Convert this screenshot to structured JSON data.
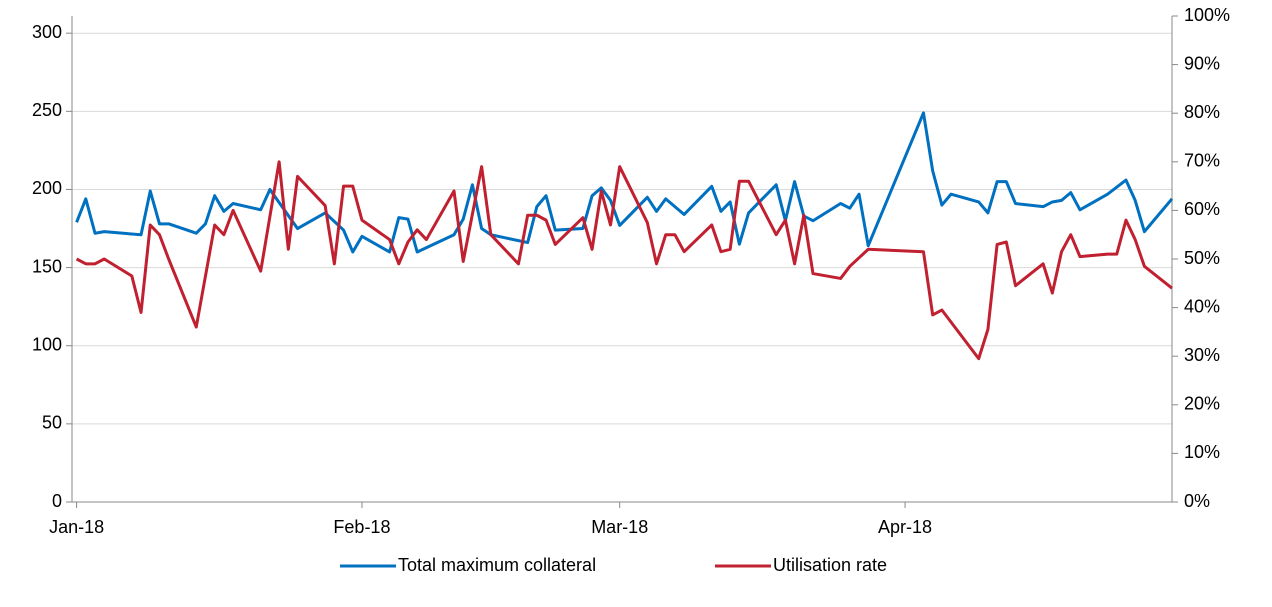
{
  "chart_data": {
    "type": "line",
    "xlim": [
      -0.5,
      119
    ],
    "xticks": [
      {
        "value": 0,
        "label": "Jan-18"
      },
      {
        "value": 31,
        "label": "Feb-18"
      },
      {
        "value": 59,
        "label": "Mar-18"
      },
      {
        "value": 90,
        "label": "Apr-18"
      }
    ],
    "ylim": [
      0,
      311
    ],
    "yticks": [
      0,
      50,
      100,
      150,
      200,
      250,
      300
    ],
    "y2lim": [
      0,
      100
    ],
    "y2ticks": [
      {
        "value": 0,
        "label": "0%"
      },
      {
        "value": 10,
        "label": "10%"
      },
      {
        "value": 20,
        "label": "20%"
      },
      {
        "value": 30,
        "label": "30%"
      },
      {
        "value": 40,
        "label": "40%"
      },
      {
        "value": 50,
        "label": "50%"
      },
      {
        "value": 60,
        "label": "60%"
      },
      {
        "value": 70,
        "label": "70%"
      },
      {
        "value": 80,
        "label": "80%"
      },
      {
        "value": 90,
        "label": "90%"
      },
      {
        "value": 100,
        "label": "100%"
      }
    ],
    "grid": true,
    "legend": "bottom",
    "series": [
      {
        "name": "Total maximum collateral",
        "color": "#0070c0",
        "x": [
          0,
          1,
          2,
          3,
          7,
          8,
          9,
          10,
          13,
          14,
          15,
          16,
          17,
          20,
          21,
          24,
          27,
          29,
          30,
          31,
          34,
          35,
          36,
          37,
          41,
          42,
          43,
          44,
          45,
          49,
          50,
          51,
          52,
          55,
          56,
          57,
          58,
          59,
          62,
          63,
          64,
          66,
          69,
          70,
          71,
          72,
          73,
          76,
          77,
          78,
          79,
          80,
          83,
          84,
          85,
          86,
          92,
          93,
          94,
          95,
          98,
          99,
          100,
          101,
          102,
          105,
          106,
          107,
          108,
          109,
          112,
          114,
          115,
          116,
          119
        ],
        "values": [
          179,
          194,
          172,
          173,
          171,
          199,
          178,
          178,
          172,
          178,
          196,
          186,
          191,
          187,
          200,
          175,
          185,
          174,
          160,
          170,
          160,
          182,
          181,
          160,
          171,
          181,
          203,
          175,
          171,
          166,
          189,
          196,
          174,
          175,
          196,
          201,
          193,
          177,
          195,
          186,
          194,
          184,
          202,
          186,
          192,
          165,
          185,
          203,
          180,
          205,
          183,
          180,
          191,
          188,
          197,
          164,
          249,
          212,
          190,
          197,
          192,
          185,
          205,
          205,
          191,
          189,
          192,
          193,
          198,
          187,
          197,
          206,
          193,
          173,
          194
        ]
      },
      {
        "name": "Utilisation rate",
        "color": "#c0202f",
        "axis": "y2",
        "x": [
          0,
          1,
          2,
          3,
          6,
          7,
          8,
          9,
          10,
          13,
          15,
          16,
          17,
          20,
          22,
          23,
          24,
          27,
          28,
          29,
          30,
          31,
          34,
          35,
          36,
          37,
          38,
          41,
          42,
          44,
          45,
          48,
          49,
          50,
          51,
          52,
          55,
          56,
          57,
          58,
          59,
          62,
          63,
          64,
          65,
          66,
          69,
          70,
          71,
          72,
          73,
          76,
          77,
          78,
          79,
          80,
          83,
          84,
          86,
          92,
          93,
          94,
          98,
          99,
          100,
          101,
          102,
          105,
          106,
          107,
          108,
          109,
          112,
          113,
          114,
          115,
          116,
          119
        ],
        "values": [
          50,
          49,
          49,
          50,
          46.5,
          39,
          57,
          55,
          50,
          36,
          57,
          55,
          60,
          47.5,
          70,
          52,
          67,
          61,
          49,
          65,
          65,
          58,
          54,
          49,
          53.5,
          56,
          54,
          64,
          49.5,
          69,
          55,
          49,
          59,
          59,
          58,
          53,
          58.5,
          52,
          64,
          57,
          69,
          57.5,
          49,
          55,
          55,
          51.5,
          57,
          51.5,
          52,
          66,
          66,
          55,
          58,
          49,
          59,
          47,
          46,
          48.5,
          52,
          51.5,
          38.5,
          39.5,
          29.5,
          35.5,
          53,
          53.5,
          44.5,
          49,
          43,
          51.5,
          55,
          50.5,
          51,
          51,
          58,
          54,
          48.5,
          44
        ]
      }
    ]
  }
}
